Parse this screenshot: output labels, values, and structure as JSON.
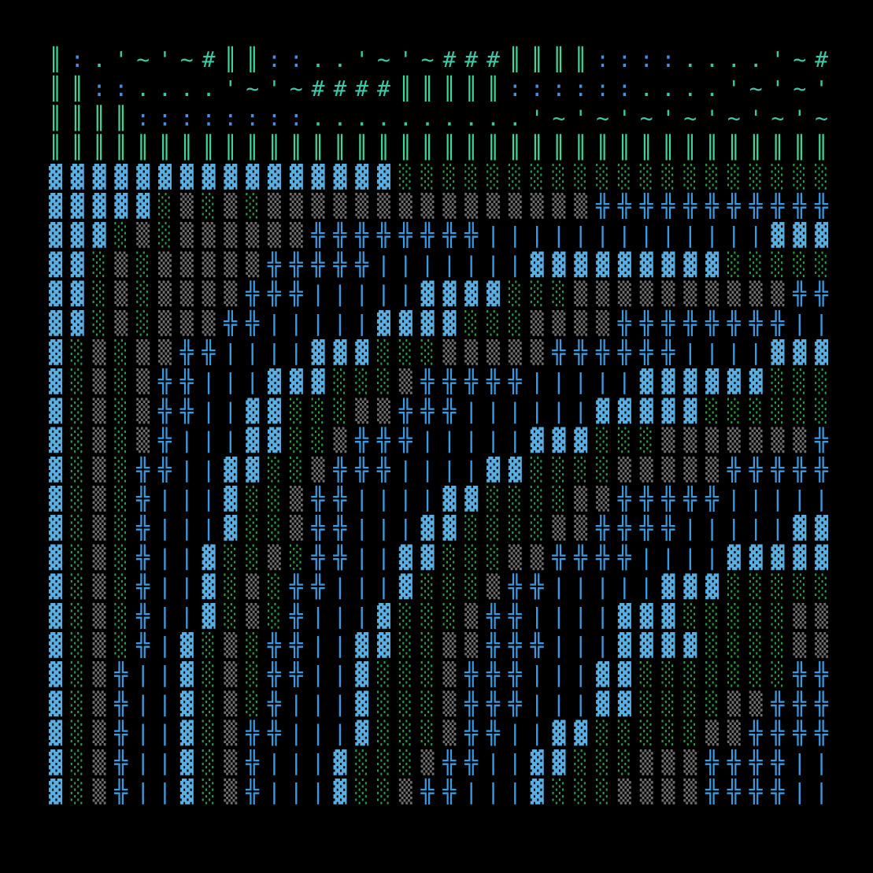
{
  "lines": [
    "║:.'~'~#║║::..'~'~###║║║║::::....'~#",
    "║║::....'~'~####║║║║║::::::....'~'~'",
    "║║║║::::::::..........'~'~'~'~'~'~'~",
    "║║║║║║║║║║║║║║║║║║║║║║║║║║║║║║║║║║║║",
    "▓▓▓▓▓▓▓▓▓▓▓▓▓▓▓▓░░░░░░░░░░░░░░░░░░░░",
    "▓▓▓▓▓░▒░▒░▒▒▒▒▒▒▒▒▒▒▒▒▒▒▒╬╬╬╬╬╬╬╬╬╬╬",
    "▓▓▓░▒░▒▒▒▒▒▒╬╬╬╬╬╬╬╬|||||||||||||▓▓▓",
    "▓▓░▒░▒▒▒▒▒╬╬╬╬╬|||||||▓▓▓▓▓▓▓▓▓░░░░░",
    "▓▓░▒░▒▒▒▒╬╬╬|||||▓▓▓▓░░░▒▒▒▒▒▒▒▒▒▒╬╬",
    "▓▓░▒░▒▒▒╬╬|||||▓▓▓▓░░░▒▒▒▒╬╬╬╬╬╬╬╬||",
    "▓░▒░▒▒╬╬||||▓▓▓░░░▒▒▒▒▒╬╬╬╬╬╬||||▓▓▓",
    "▓░▒░▒╬╬|||▓▓▓░░░▒╬╬╬╬╬|||||▓▓▓▓▓▓░░░",
    "▓░▒░▒╬╬||▓▓░░░▒▒╬╬╬||||||▓▓▓▓▓░░░░░░",
    "▓░▒░▒╬|||▓▓░░▒╬╬╬|||||▓▓▓░░░▒▒▒▒▒▒▒╬",
    "▓░▒░╬╬||▓▓░░▒╬╬╬||||▓▓░░░░▒▒▒▒▒╬╬╬╬╬",
    "▓░▒░╬|||▓░░▒╬╬||||▓▓░░░░▒▒╬╬╬╬╬|||||",
    "▓░▒░╬|||▓░░▒╬╬|||▓▓░░░░▒▒╬╬╬╬|||||▓▓",
    "▓░▒░╬||▓░░▒░╬╬||▓▓░░░▒▒╬╬╬╬||||▓▓▓▓▓",
    "▓░▒░╬||▓░▒░╬╬|||▓░░░▒╬╬|||||▓▓▓░░░░░",
    "▓░▒░╬||▓░▒░╬|||▓░░░▒╬╬||||▓▓▓░░░░░▒▒",
    "▓░▒░╬|▓░▒░╬╬||▓▓░░▒▒╬╬╬|||▓▓▓▓░░░░▒▒",
    "▓░▒╬||▓░▒░╬╬||▓░░░▒╬╬╬|||▓▓░░░░░░░╬╬",
    "▓░▒╬||▓░▒░╬|||▓░░░▒╬╬╬|||▓▓░░░░▒▒╬╬╬",
    "▓░▒╬||▓░▒╬╬|||▓░░░▒╬╬||▓▓░░░░░▒▒╬╬╬╬",
    "▓░▒╬||▓░▒╬|||▓░░░▒╬╬||▓▓░░░▒▒▒╬╬╬╬||",
    "▓░▒╬||▓░▒╬|||▓░░▒╬╬|||▓░░░▒▒▒▒╬╬╬╬||"
  ]
}
